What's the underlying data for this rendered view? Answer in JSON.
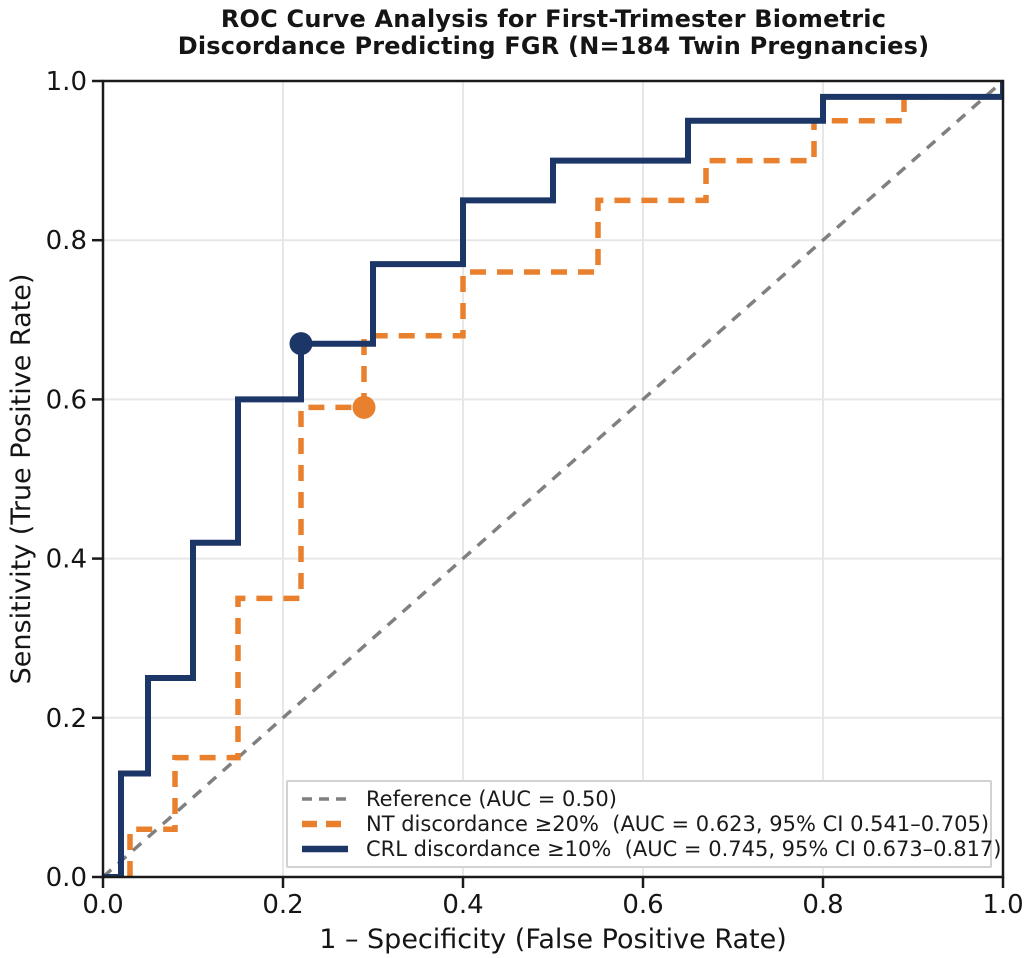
{
  "figure_title_lines": [
    "ROC Curve Analysis for First-Trimester Biometric",
    "Discordance Predicting FGR (N=184 Twin Pregnancies)"
  ],
  "chart_data": {
    "type": "line",
    "subtype": "roc-step-curves",
    "title": "ROC Curve Analysis for First-Trimester Biometric Discordance Predicting FGR (N=184 Twin Pregnancies)",
    "sample_size_note": "N=184 Twin Pregnancies",
    "xlabel": "1 – Specificity (False Positive Rate)",
    "ylabel": "Sensitivity (True Positive Rate)",
    "xlim": [
      0.0,
      1.0
    ],
    "ylim": [
      0.0,
      1.0
    ],
    "xticks": [
      "0.0",
      "0.2",
      "0.4",
      "0.6",
      "0.8",
      "1.0"
    ],
    "yticks": [
      "0.0",
      "0.2",
      "0.4",
      "0.6",
      "0.8",
      "1.0"
    ],
    "grid": true,
    "grid_color": "#e7e7e7",
    "frame_color": "#1a1a1a",
    "legend_position": "lower right",
    "series": [
      {
        "id": "reference",
        "name": "Reference (AUC = 0.50)",
        "auc": 0.5,
        "color": "#808080",
        "style": "dashed",
        "dash": "11 9",
        "width": 3.5,
        "step": false,
        "points": [
          [
            0.0,
            0.0
          ],
          [
            1.0,
            1.0
          ]
        ]
      },
      {
        "id": "nt-discordance",
        "name": "NT discordance ≥20%  (AUC = 0.623, 95% CI 0.541–0.705)",
        "auc": 0.623,
        "ci_95": "0.541–0.705",
        "threshold": "≥20%",
        "color": "#e8802e",
        "style": "dashed",
        "dash": "16 11",
        "width": 5.5,
        "step": true,
        "points": [
          [
            0.0,
            0.0
          ],
          [
            0.03,
            0.0
          ],
          [
            0.03,
            0.06
          ],
          [
            0.08,
            0.06
          ],
          [
            0.08,
            0.15
          ],
          [
            0.15,
            0.15
          ],
          [
            0.15,
            0.35
          ],
          [
            0.22,
            0.35
          ],
          [
            0.22,
            0.59
          ],
          [
            0.29,
            0.59
          ],
          [
            0.29,
            0.68
          ],
          [
            0.4,
            0.68
          ],
          [
            0.4,
            0.76
          ],
          [
            0.55,
            0.76
          ],
          [
            0.55,
            0.85
          ],
          [
            0.67,
            0.85
          ],
          [
            0.67,
            0.9
          ],
          [
            0.79,
            0.9
          ],
          [
            0.79,
            0.95
          ],
          [
            0.89,
            0.95
          ],
          [
            0.89,
            0.98
          ],
          [
            1.0,
            0.98
          ],
          [
            1.0,
            1.0
          ]
        ],
        "optimal_point": {
          "x": 0.29,
          "y": 0.59
        }
      },
      {
        "id": "crl-discordance",
        "name": "CRL discordance ≥10%  (AUC = 0.745, 95% CI 0.673–0.817)",
        "auc": 0.745,
        "ci_95": "0.673–0.817",
        "threshold": "≥10%",
        "color": "#1c3767",
        "style": "solid",
        "dash": "",
        "width": 6,
        "step": true,
        "points": [
          [
            0.0,
            0.0
          ],
          [
            0.02,
            0.0
          ],
          [
            0.02,
            0.13
          ],
          [
            0.05,
            0.13
          ],
          [
            0.05,
            0.25
          ],
          [
            0.1,
            0.25
          ],
          [
            0.1,
            0.42
          ],
          [
            0.15,
            0.42
          ],
          [
            0.15,
            0.6
          ],
          [
            0.22,
            0.6
          ],
          [
            0.22,
            0.67
          ],
          [
            0.3,
            0.67
          ],
          [
            0.3,
            0.77
          ],
          [
            0.4,
            0.77
          ],
          [
            0.4,
            0.85
          ],
          [
            0.5,
            0.85
          ],
          [
            0.5,
            0.9
          ],
          [
            0.65,
            0.9
          ],
          [
            0.65,
            0.95
          ],
          [
            0.8,
            0.95
          ],
          [
            0.8,
            0.98
          ],
          [
            1.0,
            0.98
          ],
          [
            1.0,
            1.0
          ]
        ],
        "optimal_point": {
          "x": 0.22,
          "y": 0.67
        }
      }
    ]
  }
}
